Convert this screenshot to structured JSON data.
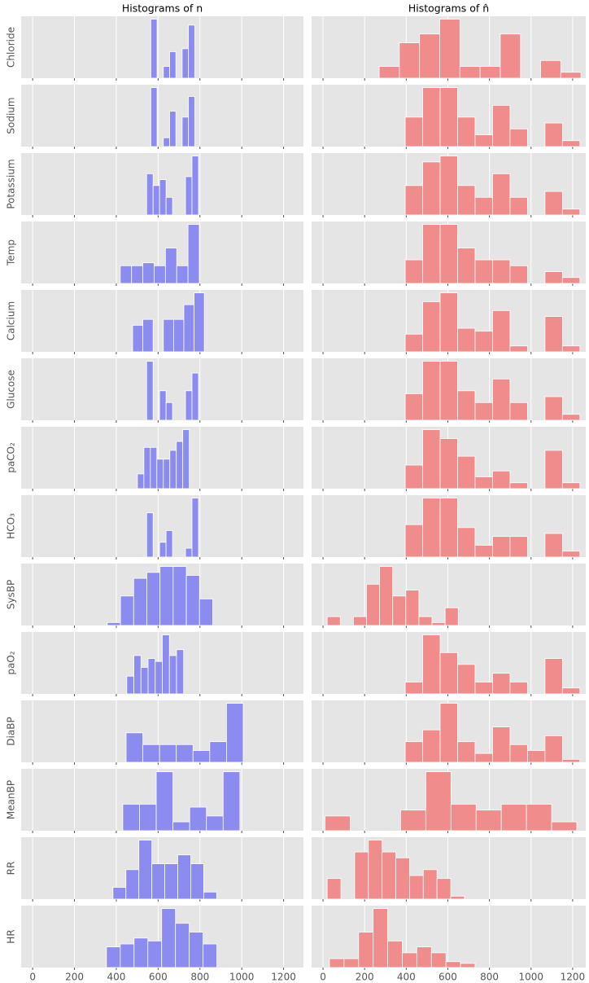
{
  "chart_data": [
    {
      "type": "histogram",
      "title": "Histograms of n",
      "color": "#8c8cf0",
      "grid": true,
      "xlim": [
        -55,
        1295
      ],
      "xticks": [
        0,
        200,
        400,
        600,
        800,
        1000,
        1200
      ],
      "ylim": [
        0,
        10.5
      ],
      "panels": [
        {
          "label": "Chloride",
          "bins": [
            565,
            595,
            625,
            655,
            685,
            715,
            745,
            775
          ],
          "counts": [
            10,
            0,
            2,
            4.5,
            0,
            5,
            9
          ]
        },
        {
          "label": "Sodium",
          "bins": [
            565,
            595,
            625,
            655,
            685,
            715,
            745,
            775
          ],
          "counts": [
            10,
            0,
            1.5,
            6,
            0,
            5,
            8.5
          ]
        },
        {
          "label": "Potassium",
          "bins": [
            545,
            576,
            607,
            638,
            669,
            700,
            731,
            762,
            793
          ],
          "counts": [
            7,
            5,
            6,
            3,
            0,
            0,
            6.5,
            10
          ]
        },
        {
          "label": "Temp",
          "bins": [
            419,
            473,
            527,
            581,
            635,
            689,
            743,
            797
          ],
          "counts": [
            3,
            3,
            3.5,
            3,
            6,
            3,
            10
          ]
        },
        {
          "label": "Calcium",
          "bins": [
            478,
            527,
            576,
            625,
            674,
            723,
            772,
            821
          ],
          "counts": [
            4.5,
            5.5,
            0,
            5.5,
            5.5,
            8,
            10
          ]
        },
        {
          "label": "Glucose",
          "bins": [
            545,
            576,
            607,
            638,
            669,
            700,
            731,
            762,
            793
          ],
          "counts": [
            10,
            0,
            5,
            3,
            0,
            0,
            5,
            8
          ]
        },
        {
          "label": "paCO₂",
          "bins": [
            501,
            532,
            563,
            594,
            625,
            656,
            687,
            718,
            749
          ],
          "counts": [
            2.5,
            7,
            7,
            5,
            5,
            6.5,
            8,
            10
          ]
        },
        {
          "label": "HCO₃",
          "bins": [
            545,
            576,
            607,
            638,
            669,
            700,
            731,
            762,
            793
          ],
          "counts": [
            7.5,
            0,
            2.5,
            4.5,
            0,
            0,
            1.5,
            10
          ]
        },
        {
          "label": "SysBP",
          "bins": [
            357,
            420,
            483,
            546,
            609,
            672,
            735,
            798,
            861
          ],
          "counts": [
            0.5,
            5,
            8,
            9,
            10,
            10,
            8.5,
            4.5
          ]
        },
        {
          "label": "paO₂",
          "bins": [
            450,
            484,
            518,
            552,
            586,
            620,
            654,
            688,
            722
          ],
          "counts": [
            3,
            6.5,
            4.5,
            6,
            5.5,
            10,
            6.5,
            7.5
          ]
        },
        {
          "label": "DiaBP",
          "bins": [
            447,
            527,
            607,
            687,
            767,
            847,
            927,
            1007
          ],
          "counts": [
            5,
            3,
            3,
            3,
            2,
            3.5,
            10
          ]
        },
        {
          "label": "MeanBP",
          "bins": [
            431,
            511,
            591,
            671,
            751,
            831,
            911,
            991
          ],
          "counts": [
            4.5,
            4.5,
            10,
            1.5,
            4,
            2.5,
            10
          ]
        },
        {
          "label": "RR",
          "bins": [
            384,
            446,
            508,
            570,
            632,
            694,
            756,
            818,
            880
          ],
          "counts": [
            2,
            5,
            10,
            6,
            6,
            7.5,
            6,
            1.2
          ]
        },
        {
          "label": "HR",
          "bins": [
            353,
            419,
            485,
            551,
            617,
            683,
            749,
            815,
            881
          ],
          "counts": [
            3.5,
            4,
            5,
            4.5,
            10,
            7.5,
            6,
            4
          ]
        }
      ]
    },
    {
      "type": "histogram",
      "title": "Histograms of n̂",
      "color": "#f08c8c",
      "grid": true,
      "xlim": [
        -55,
        1263
      ],
      "xticks": [
        0,
        200,
        400,
        600,
        800,
        1000,
        1200
      ],
      "ylim": [
        0,
        10.5
      ],
      "panels": [
        {
          "bins": [
            270,
            367,
            464,
            561,
            658,
            755,
            852,
            949,
            1046,
            1143,
            1240
          ],
          "counts": [
            2,
            6,
            7.5,
            10,
            2,
            2,
            7.5,
            0,
            3,
            1
          ]
        },
        {
          "bins": [
            395,
            479,
            563,
            647,
            731,
            815,
            899,
            983,
            1067,
            1151,
            1235
          ],
          "counts": [
            5,
            10,
            10,
            5,
            2,
            7,
            3,
            0,
            4,
            1
          ]
        },
        {
          "bins": [
            395,
            479,
            563,
            647,
            731,
            815,
            899,
            983,
            1067,
            1151,
            1235
          ],
          "counts": [
            5,
            9,
            10,
            5,
            3,
            7,
            3,
            0,
            4,
            1
          ]
        },
        {
          "bins": [
            395,
            479,
            563,
            647,
            731,
            815,
            899,
            983,
            1067,
            1151,
            1235
          ],
          "counts": [
            4,
            10,
            10,
            6,
            4,
            4,
            3,
            0,
            2,
            1
          ]
        },
        {
          "bins": [
            395,
            479,
            563,
            647,
            731,
            815,
            899,
            983,
            1067,
            1151,
            1235
          ],
          "counts": [
            3,
            8.5,
            10,
            4,
            3.5,
            7,
            1,
            0,
            6,
            1
          ]
        },
        {
          "bins": [
            395,
            479,
            563,
            647,
            731,
            815,
            899,
            983,
            1067,
            1151,
            1235
          ],
          "counts": [
            4.5,
            10,
            10,
            5,
            3,
            7,
            3,
            0,
            4,
            1
          ]
        },
        {
          "bins": [
            395,
            479,
            563,
            647,
            731,
            815,
            899,
            983,
            1067,
            1151,
            1235
          ],
          "counts": [
            4,
            10,
            8.5,
            5.5,
            2,
            3,
            1,
            0,
            6.5,
            1
          ]
        },
        {
          "bins": [
            395,
            479,
            563,
            647,
            731,
            815,
            899,
            983,
            1067,
            1151,
            1235
          ],
          "counts": [
            5.5,
            10,
            10,
            5,
            2,
            3.5,
            3.5,
            0,
            4,
            1
          ]
        },
        {
          "bins": [
            20,
            83,
            146,
            209,
            272,
            335,
            398,
            461,
            524,
            587,
            650
          ],
          "counts": [
            1.5,
            0,
            1.5,
            7,
            10,
            5,
            6,
            1.5,
            0.5,
            3
          ]
        },
        {
          "bins": [
            395,
            479,
            563,
            647,
            731,
            815,
            899,
            983,
            1067,
            1151,
            1235
          ],
          "counts": [
            2,
            10,
            7,
            5,
            2,
            3.5,
            2,
            0,
            6,
            1
          ]
        },
        {
          "bins": [
            395,
            479,
            563,
            647,
            731,
            815,
            899,
            983,
            1067,
            1151,
            1235
          ],
          "counts": [
            3.5,
            5.5,
            10,
            3.5,
            1.5,
            6,
            3,
            2,
            4.5,
            0.5
          ]
        },
        {
          "bins": [
            10,
            131,
            252,
            373,
            494,
            615,
            736,
            857,
            978,
            1099,
            1220
          ],
          "counts": [
            2.5,
            0,
            0,
            3.5,
            10,
            4.5,
            3.5,
            4.5,
            4.5,
            1.5
          ]
        },
        {
          "bins": [
            20,
            86,
            152,
            218,
            284,
            350,
            416,
            482,
            548,
            614,
            680
          ],
          "counts": [
            3.5,
            0,
            8,
            10,
            8,
            7,
            4,
            5,
            3.5,
            0.5
          ]
        },
        {
          "bins": [
            31,
            101,
            171,
            241,
            311,
            381,
            451,
            521,
            591,
            661,
            731
          ],
          "counts": [
            1.5,
            1.5,
            6,
            10,
            4.5,
            2.5,
            3.5,
            2.5,
            1,
            0.7
          ]
        }
      ]
    }
  ]
}
